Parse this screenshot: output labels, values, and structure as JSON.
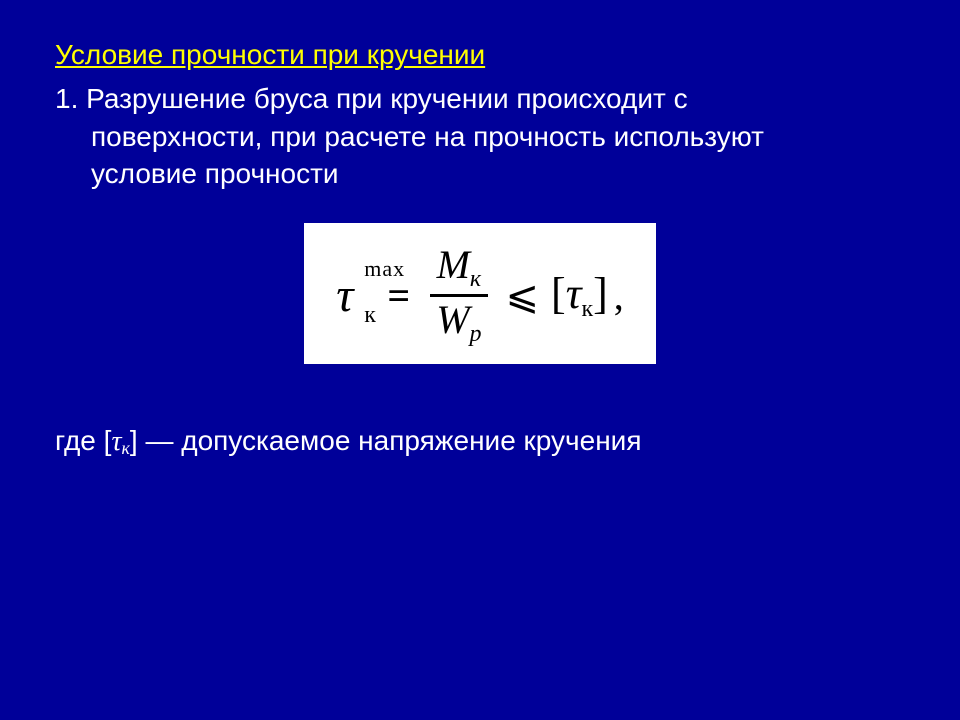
{
  "slide": {
    "background_color": "#000099",
    "text_color": "#ffffff",
    "title_color": "#ffff00",
    "title": "Условие прочности при кручении",
    "body_lead": "1. Разрушение бруса при кручении происходит с",
    "body_line2": "поверхности, при расчете на прочность используют",
    "body_line3": "условие прочности",
    "where_prefix": "где [",
    "where_tau": "τ",
    "where_sub": "к",
    "where_suffix": "] — допускаемое напряжение кручения"
  },
  "formula": {
    "box_bg": "#ffffff",
    "box_fg": "#000000",
    "lhs_base": "τ",
    "lhs_sup": "max",
    "lhs_sub": "к",
    "eq": "=",
    "num_sym": "M",
    "num_sub": "к",
    "den_sym": "W",
    "den_sub": "p",
    "le": "⩽",
    "rhs_open": "[",
    "rhs_tau": "τ",
    "rhs_sub": "к",
    "rhs_close": "]",
    "trail": ","
  }
}
